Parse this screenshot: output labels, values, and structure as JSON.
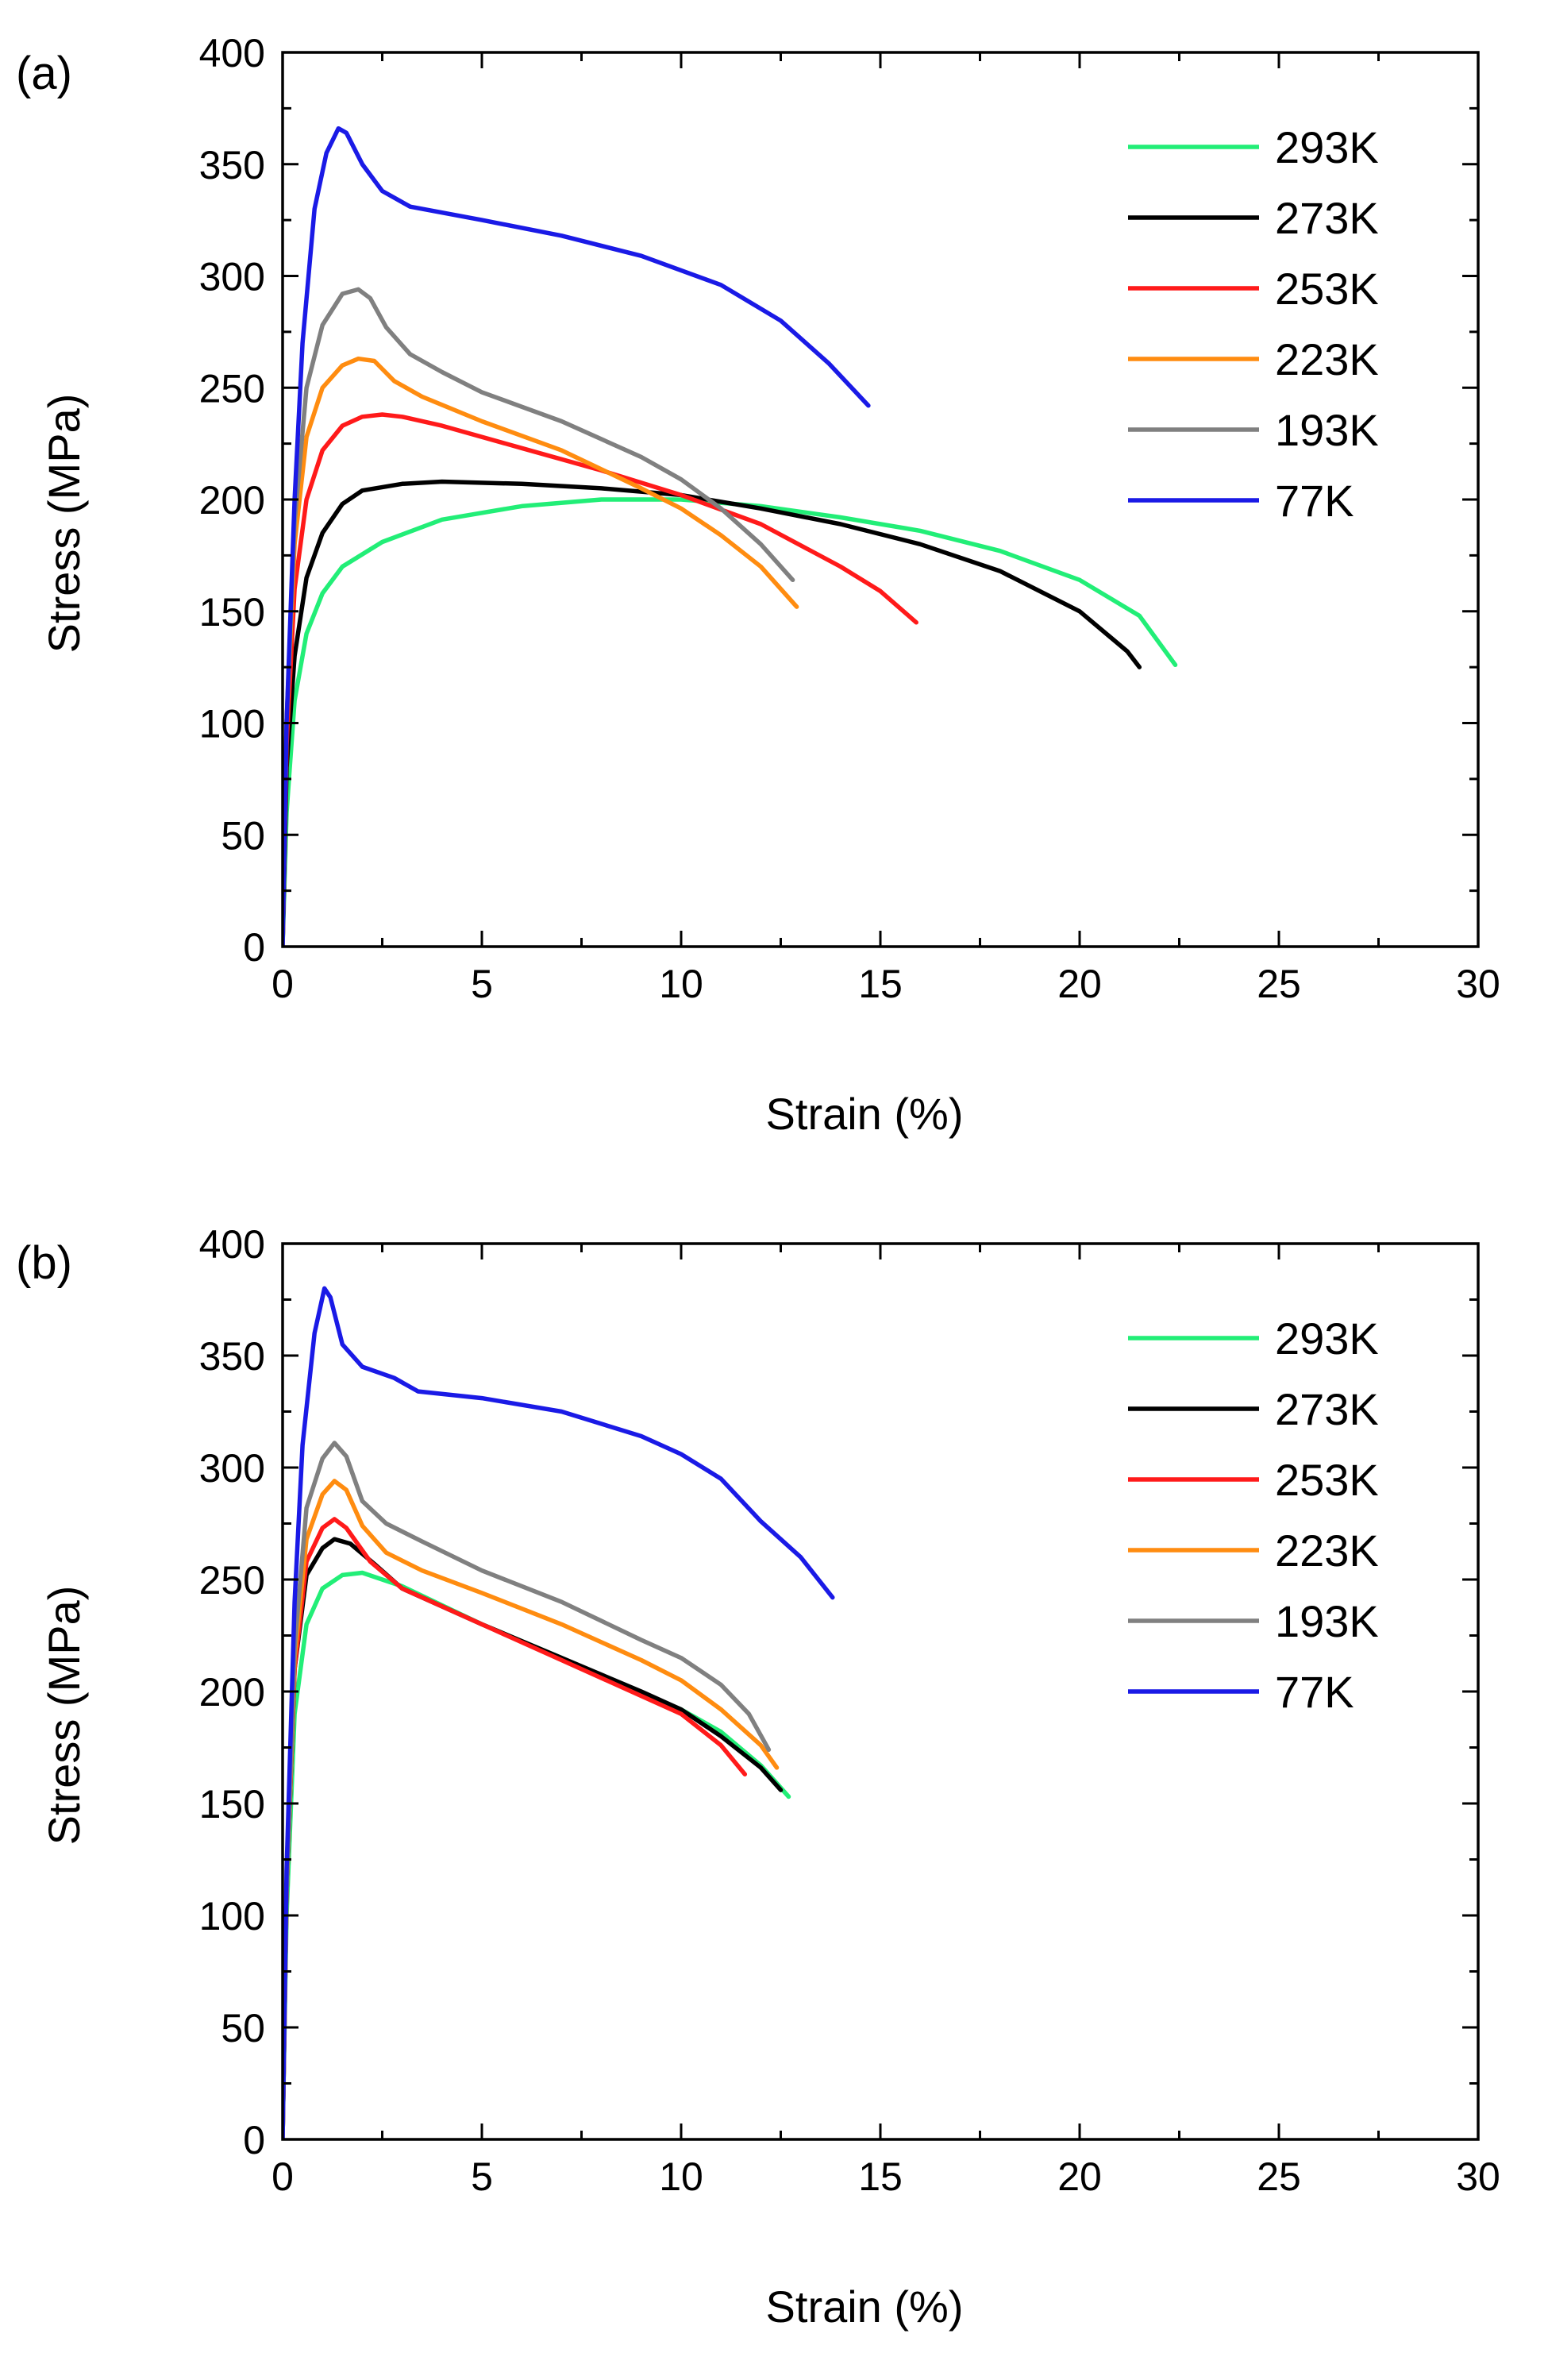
{
  "chart_data": [
    {
      "type": "line",
      "panel_label": "(a)",
      "xlabel": "Strain (%)",
      "ylabel": "Stress (MPa)",
      "xlim": [
        0,
        30
      ],
      "ylim": [
        0,
        400
      ],
      "xticks": [
        0,
        5,
        10,
        15,
        20,
        25,
        30
      ],
      "yticks": [
        0,
        50,
        100,
        150,
        200,
        250,
        300,
        350,
        400
      ],
      "legend_position": "top-right",
      "series": [
        {
          "name": "293K",
          "color": "#22ee77",
          "points": [
            [
              0,
              0
            ],
            [
              0.1,
              60
            ],
            [
              0.3,
              110
            ],
            [
              0.6,
              140
            ],
            [
              1,
              158
            ],
            [
              1.5,
              170
            ],
            [
              2.5,
              181
            ],
            [
              4,
              191
            ],
            [
              6,
              197
            ],
            [
              8,
              200
            ],
            [
              10,
              200
            ],
            [
              12,
              197
            ],
            [
              14,
              192
            ],
            [
              16,
              186
            ],
            [
              18,
              177
            ],
            [
              20,
              164
            ],
            [
              21.5,
              148
            ],
            [
              22.4,
              126
            ]
          ]
        },
        {
          "name": "273K",
          "color": "#000000",
          "points": [
            [
              0,
              0
            ],
            [
              0.1,
              80
            ],
            [
              0.3,
              130
            ],
            [
              0.6,
              165
            ],
            [
              1,
              185
            ],
            [
              1.5,
              198
            ],
            [
              2,
              204
            ],
            [
              3,
              207
            ],
            [
              4,
              208
            ],
            [
              6,
              207
            ],
            [
              8,
              205
            ],
            [
              10,
              202
            ],
            [
              12,
              196
            ],
            [
              14,
              189
            ],
            [
              16,
              180
            ],
            [
              18,
              168
            ],
            [
              20,
              150
            ],
            [
              21.2,
              132
            ],
            [
              21.5,
              125
            ]
          ]
        },
        {
          "name": "253K",
          "color": "#ff1a1a",
          "points": [
            [
              0,
              0
            ],
            [
              0.1,
              90
            ],
            [
              0.3,
              160
            ],
            [
              0.6,
              200
            ],
            [
              1,
              222
            ],
            [
              1.5,
              233
            ],
            [
              2,
              237
            ],
            [
              2.5,
              238
            ],
            [
              3,
              237
            ],
            [
              4,
              233
            ],
            [
              6,
              223
            ],
            [
              8,
              213
            ],
            [
              10,
              202
            ],
            [
              12,
              189
            ],
            [
              14,
              170
            ],
            [
              15,
              159
            ],
            [
              15.9,
              145
            ]
          ]
        },
        {
          "name": "223K",
          "color": "#ff8c10",
          "points": [
            [
              0,
              0
            ],
            [
              0.1,
              100
            ],
            [
              0.3,
              180
            ],
            [
              0.6,
              228
            ],
            [
              1,
              250
            ],
            [
              1.5,
              260
            ],
            [
              1.9,
              263
            ],
            [
              2.3,
              262
            ],
            [
              2.8,
              253
            ],
            [
              3.5,
              246
            ],
            [
              5,
              235
            ],
            [
              7,
              222
            ],
            [
              9,
              205
            ],
            [
              10,
              196
            ],
            [
              11,
              184
            ],
            [
              12,
              170
            ],
            [
              12.9,
              152
            ]
          ]
        },
        {
          "name": "193K",
          "color": "#808080",
          "points": [
            [
              0,
              0
            ],
            [
              0.1,
              100
            ],
            [
              0.3,
              190
            ],
            [
              0.6,
              250
            ],
            [
              1,
              278
            ],
            [
              1.5,
              292
            ],
            [
              1.9,
              294
            ],
            [
              2.2,
              290
            ],
            [
              2.6,
              277
            ],
            [
              3.2,
              265
            ],
            [
              4,
              257
            ],
            [
              5,
              248
            ],
            [
              7,
              235
            ],
            [
              9,
              219
            ],
            [
              10,
              209
            ],
            [
              11,
              196
            ],
            [
              12,
              180
            ],
            [
              12.8,
              164
            ]
          ]
        },
        {
          "name": "77K",
          "color": "#1a1ae6",
          "points": [
            [
              0,
              0
            ],
            [
              0.1,
              100
            ],
            [
              0.3,
              200
            ],
            [
              0.5,
              270
            ],
            [
              0.8,
              330
            ],
            [
              1.1,
              355
            ],
            [
              1.4,
              366
            ],
            [
              1.6,
              364
            ],
            [
              2,
              350
            ],
            [
              2.5,
              338
            ],
            [
              3.2,
              331
            ],
            [
              5,
              325
            ],
            [
              7,
              318
            ],
            [
              9,
              309
            ],
            [
              11,
              296
            ],
            [
              12.5,
              280
            ],
            [
              13.7,
              261
            ],
            [
              14.7,
              242
            ]
          ]
        }
      ]
    },
    {
      "type": "line",
      "panel_label": "(b)",
      "xlabel": "Strain (%)",
      "ylabel": "Stress (MPa)",
      "xlim": [
        0,
        30
      ],
      "ylim": [
        0,
        400
      ],
      "xticks": [
        0,
        5,
        10,
        15,
        20,
        25,
        30
      ],
      "yticks": [
        0,
        50,
        100,
        150,
        200,
        250,
        300,
        350,
        400
      ],
      "legend_position": "top-right",
      "series": [
        {
          "name": "293K",
          "color": "#22ee77",
          "points": [
            [
              0,
              0
            ],
            [
              0.1,
              100
            ],
            [
              0.3,
              190
            ],
            [
              0.6,
              230
            ],
            [
              1,
              246
            ],
            [
              1.5,
              252
            ],
            [
              2,
              253
            ],
            [
              3,
              247
            ],
            [
              5,
              230
            ],
            [
              7,
              215
            ],
            [
              9,
              199
            ],
            [
              10,
              192
            ],
            [
              11,
              182
            ],
            [
              12,
              167
            ],
            [
              12.7,
              153
            ]
          ]
        },
        {
          "name": "273K",
          "color": "#000000",
          "points": [
            [
              0,
              0
            ],
            [
              0.1,
              110
            ],
            [
              0.3,
              210
            ],
            [
              0.6,
              252
            ],
            [
              1,
              264
            ],
            [
              1.3,
              268
            ],
            [
              1.7,
              266
            ],
            [
              2.3,
              257
            ],
            [
              3,
              246
            ],
            [
              5,
              230
            ],
            [
              7,
              215
            ],
            [
              9,
              200
            ],
            [
              10,
              192
            ],
            [
              11,
              180
            ],
            [
              12,
              166
            ],
            [
              12.5,
              156
            ]
          ]
        },
        {
          "name": "253K",
          "color": "#ff1a1a",
          "points": [
            [
              0,
              0
            ],
            [
              0.1,
              110
            ],
            [
              0.3,
              210
            ],
            [
              0.6,
              258
            ],
            [
              1,
              273
            ],
            [
              1.3,
              277
            ],
            [
              1.6,
              273
            ],
            [
              2.2,
              258
            ],
            [
              3,
              246
            ],
            [
              5,
              230
            ],
            [
              7,
              214
            ],
            [
              9,
              198
            ],
            [
              10,
              190
            ],
            [
              11,
              176
            ],
            [
              11.6,
              163
            ]
          ]
        },
        {
          "name": "223K",
          "color": "#ff8c10",
          "points": [
            [
              0,
              0
            ],
            [
              0.1,
              110
            ],
            [
              0.3,
              215
            ],
            [
              0.6,
              268
            ],
            [
              1,
              288
            ],
            [
              1.3,
              294
            ],
            [
              1.6,
              290
            ],
            [
              2,
              274
            ],
            [
              2.6,
              262
            ],
            [
              3.5,
              254
            ],
            [
              5,
              244
            ],
            [
              7,
              230
            ],
            [
              9,
              214
            ],
            [
              10,
              205
            ],
            [
              11,
              192
            ],
            [
              12,
              176
            ],
            [
              12.4,
              166
            ]
          ]
        },
        {
          "name": "193K",
          "color": "#808080",
          "points": [
            [
              0,
              0
            ],
            [
              0.1,
              110
            ],
            [
              0.3,
              220
            ],
            [
              0.6,
              282
            ],
            [
              1,
              304
            ],
            [
              1.3,
              311
            ],
            [
              1.6,
              305
            ],
            [
              2,
              285
            ],
            [
              2.6,
              275
            ],
            [
              3.5,
              267
            ],
            [
              5,
              254
            ],
            [
              7,
              240
            ],
            [
              9,
              223
            ],
            [
              10,
              215
            ],
            [
              11,
              203
            ],
            [
              11.7,
              190
            ],
            [
              12.2,
              174
            ]
          ]
        },
        {
          "name": "77K",
          "color": "#1a1ae6",
          "points": [
            [
              0,
              0
            ],
            [
              0.1,
              120
            ],
            [
              0.3,
              240
            ],
            [
              0.5,
              310
            ],
            [
              0.8,
              360
            ],
            [
              1.05,
              380
            ],
            [
              1.2,
              376
            ],
            [
              1.5,
              355
            ],
            [
              2,
              345
            ],
            [
              2.8,
              340
            ],
            [
              3.4,
              334
            ],
            [
              5,
              331
            ],
            [
              7,
              325
            ],
            [
              9,
              314
            ],
            [
              10,
              306
            ],
            [
              11,
              295
            ],
            [
              12,
              276
            ],
            [
              13,
              260
            ],
            [
              13.8,
              242
            ]
          ]
        }
      ]
    }
  ]
}
